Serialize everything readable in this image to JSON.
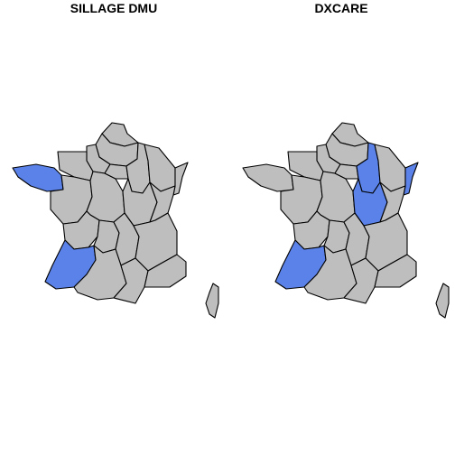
{
  "colors": {
    "default_region": "#bebebe",
    "highlight_region": "#5b82e8",
    "border": "#000000",
    "background": "#ffffff"
  },
  "maps": [
    {
      "title": "SILLAGE DMU",
      "highlighted_regions": [
        "bretagne",
        "aquitaine"
      ]
    },
    {
      "title": "DXCARE",
      "highlighted_regions": [
        "aquitaine",
        "champagne-ardenne",
        "bourgogne",
        "alsace"
      ]
    }
  ]
}
